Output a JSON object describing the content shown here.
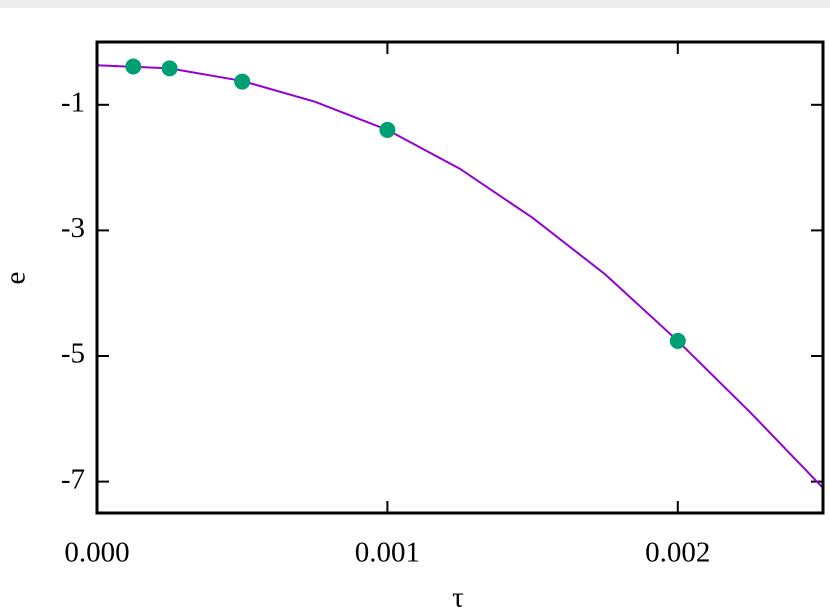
{
  "chart_data": {
    "type": "line",
    "x_label": "τ",
    "y_label": "e",
    "xlim": [
      0,
      0.0025
    ],
    "ylim": [
      -7.5,
      0
    ],
    "xticks": [
      {
        "value": 0,
        "label": "0.000"
      },
      {
        "value": 0.001,
        "label": "0.001"
      },
      {
        "value": 0.002,
        "label": "0.002"
      }
    ],
    "yticks": [
      -1,
      -3,
      -5,
      -7
    ],
    "series": [
      {
        "type": "line",
        "color": "#9400d3",
        "x": [
          0,
          0.00025,
          0.0005,
          0.00075,
          0.001,
          0.00125,
          0.0015,
          0.00175,
          0.002,
          0.00225,
          0.0025
        ],
        "values": [
          -0.37,
          -0.42,
          -0.62,
          -0.95,
          -1.4,
          -2.02,
          -2.8,
          -3.7,
          -4.76,
          -5.9,
          -7.1
        ]
      },
      {
        "type": "scatter",
        "color": "#009e73",
        "x": [
          0.000125,
          0.00025,
          0.0005,
          0.001,
          0.002
        ],
        "values": [
          -0.39,
          -0.42,
          -0.63,
          -1.4,
          -4.76
        ]
      }
    ]
  }
}
